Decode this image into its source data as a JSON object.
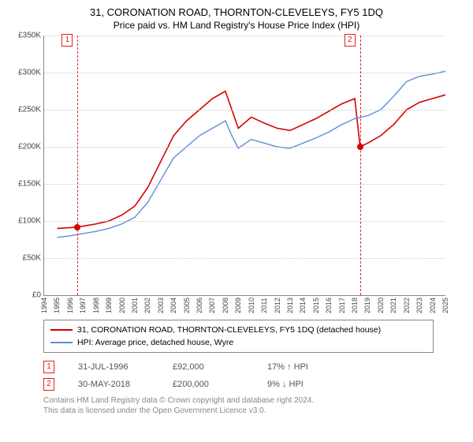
{
  "title": "31, CORONATION ROAD, THORNTON-CLEVELEYS, FY5 1DQ",
  "subtitle": "Price paid vs. HM Land Registry's House Price Index (HPI)",
  "chart": {
    "type": "line",
    "background_color": "#ffffff",
    "grid_color": "#cccccc",
    "axis_color": "#888888",
    "label_color": "#444444",
    "title_fontsize": 13,
    "label_fontsize": 10,
    "x": {
      "min": 1994,
      "max": 2025,
      "tick_step": 1
    },
    "y": {
      "min": 0,
      "max": 350000,
      "tick_step": 50000,
      "prefix": "£",
      "suffix": "K",
      "divisor": 1000
    },
    "series": [
      {
        "name": "31, CORONATION ROAD, THORNTON-CLEVELEYS, FY5 1DQ (detached house)",
        "color": "#d40000",
        "line_width": 1.6,
        "data": [
          [
            1995.0,
            90000
          ],
          [
            1996.0,
            91000
          ],
          [
            1996.58,
            92000
          ],
          [
            1997.0,
            93000
          ],
          [
            1998.0,
            96000
          ],
          [
            1999.0,
            100000
          ],
          [
            2000.0,
            108000
          ],
          [
            2001.0,
            120000
          ],
          [
            2002.0,
            145000
          ],
          [
            2003.0,
            180000
          ],
          [
            2004.0,
            215000
          ],
          [
            2005.0,
            235000
          ],
          [
            2006.0,
            250000
          ],
          [
            2007.0,
            265000
          ],
          [
            2008.0,
            275000
          ],
          [
            2008.5,
            250000
          ],
          [
            2009.0,
            225000
          ],
          [
            2010.0,
            240000
          ],
          [
            2011.0,
            232000
          ],
          [
            2012.0,
            225000
          ],
          [
            2013.0,
            222000
          ],
          [
            2014.0,
            230000
          ],
          [
            2015.0,
            238000
          ],
          [
            2016.0,
            248000
          ],
          [
            2017.0,
            258000
          ],
          [
            2018.0,
            265000
          ],
          [
            2018.41,
            200000
          ],
          [
            2019.0,
            205000
          ],
          [
            2020.0,
            215000
          ],
          [
            2021.0,
            230000
          ],
          [
            2022.0,
            250000
          ],
          [
            2023.0,
            260000
          ],
          [
            2024.0,
            265000
          ],
          [
            2025.0,
            270000
          ]
        ]
      },
      {
        "name": "HPI: Average price, detached house, Wyre",
        "color": "#5b8fd6",
        "line_width": 1.4,
        "data": [
          [
            1995.0,
            78000
          ],
          [
            1996.0,
            80000
          ],
          [
            1997.0,
            83000
          ],
          [
            1998.0,
            86000
          ],
          [
            1999.0,
            90000
          ],
          [
            2000.0,
            96000
          ],
          [
            2001.0,
            105000
          ],
          [
            2002.0,
            125000
          ],
          [
            2003.0,
            155000
          ],
          [
            2004.0,
            185000
          ],
          [
            2005.0,
            200000
          ],
          [
            2006.0,
            215000
          ],
          [
            2007.0,
            225000
          ],
          [
            2008.0,
            235000
          ],
          [
            2008.5,
            215000
          ],
          [
            2009.0,
            198000
          ],
          [
            2010.0,
            210000
          ],
          [
            2011.0,
            205000
          ],
          [
            2012.0,
            200000
          ],
          [
            2013.0,
            198000
          ],
          [
            2014.0,
            205000
          ],
          [
            2015.0,
            212000
          ],
          [
            2016.0,
            220000
          ],
          [
            2017.0,
            230000
          ],
          [
            2018.0,
            238000
          ],
          [
            2019.0,
            242000
          ],
          [
            2020.0,
            250000
          ],
          [
            2021.0,
            268000
          ],
          [
            2022.0,
            288000
          ],
          [
            2023.0,
            295000
          ],
          [
            2024.0,
            298000
          ],
          [
            2025.0,
            302000
          ]
        ]
      }
    ],
    "transaction_markers": [
      {
        "tag": "1",
        "x": 1996.58,
        "y": 92000,
        "color": "#d40000"
      },
      {
        "tag": "2",
        "x": 2018.41,
        "y": 200000,
        "color": "#d40000"
      }
    ],
    "marker_line_color": "#d22"
  },
  "legend": {
    "border_color": "#888888",
    "items": [
      {
        "color": "#d40000",
        "label": "31, CORONATION ROAD, THORNTON-CLEVELEYS, FY5 1DQ (detached house)"
      },
      {
        "color": "#5b8fd6",
        "label": "HPI: Average price, detached house, Wyre"
      }
    ]
  },
  "annotations": [
    {
      "tag": "1",
      "date": "31-JUL-1996",
      "price": "£92,000",
      "delta": "17% ↑ HPI"
    },
    {
      "tag": "2",
      "date": "30-MAY-2018",
      "price": "£200,000",
      "delta": "9% ↓ HPI"
    }
  ],
  "footnote": {
    "line1": "Contains HM Land Registry data © Crown copyright and database right 2024.",
    "line2": "This data is licensed under the Open Government Licence v3.0."
  }
}
